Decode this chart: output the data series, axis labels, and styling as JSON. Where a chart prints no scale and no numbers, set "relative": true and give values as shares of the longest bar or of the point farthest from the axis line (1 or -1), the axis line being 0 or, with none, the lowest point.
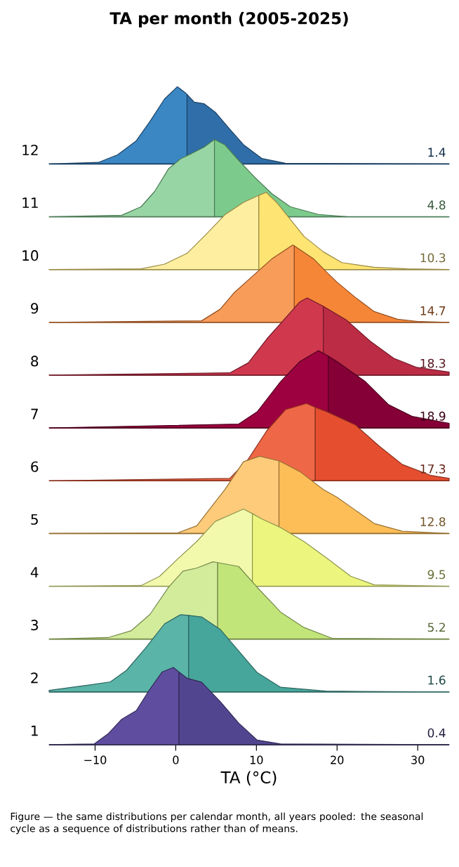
{
  "chart_data": [
    {
      "type": "area",
      "title": "TA per month (2005-2025)",
      "ylabel": "12",
      "relative": true,
      "xlim": [
        -15.7,
        33.9
      ],
      "tick_labels": false,
      "annotations": [
        "1.4"
      ],
      "series": [
        {
          "color": "#3a87c4",
          "x": [
            -15.7,
            -9.6,
            -7.2,
            -4.9,
            -3.2,
            -1.4,
            0.2,
            1.2,
            1.4
          ],
          "values": [
            0,
            0.02,
            0.12,
            0.3,
            0.55,
            0.84,
            1,
            0.92,
            0.9
          ]
        },
        {
          "color": "#2f6ea8",
          "x": [
            1.4,
            2.3,
            3.5,
            4.9,
            6.7,
            8.4,
            10.7,
            13.6,
            33.9
          ],
          "values": [
            0.9,
            0.8,
            0.78,
            0.67,
            0.45,
            0.25,
            0.07,
            0.01,
            0
          ]
        }
      ]
    },
    {
      "type": "area",
      "ylabel": "11",
      "relative": true,
      "xlim": [
        -15.7,
        33.9
      ],
      "tick_labels": false,
      "annotations": [
        "4.8"
      ],
      "series": [
        {
          "color": "#98d5a4",
          "x": [
            -15.7,
            -6.7,
            -4.3,
            -2.6,
            -0.9,
            0.6,
            2.0,
            3.5,
            4.8
          ],
          "values": [
            0,
            0.02,
            0.13,
            0.33,
            0.62,
            0.75,
            0.82,
            0.9,
            1
          ]
        },
        {
          "color": "#7ccb8c",
          "x": [
            4.8,
            6.1,
            7.8,
            9.9,
            11.9,
            14.2,
            17.7,
            21.4,
            33.9
          ],
          "values": [
            1,
            0.93,
            0.73,
            0.5,
            0.3,
            0.13,
            0.03,
            0,
            0
          ]
        }
      ]
    },
    {
      "type": "area",
      "ylabel": "10",
      "relative": true,
      "xlim": [
        -15.7,
        33.9
      ],
      "tick_labels": false,
      "annotations": [
        "10.3"
      ],
      "series": [
        {
          "color": "#feeea0",
          "x": [
            -15.7,
            -4.3,
            -1.4,
            1.4,
            3.8,
            6.1,
            8.4,
            10.3
          ],
          "values": [
            0,
            0.01,
            0.07,
            0.21,
            0.46,
            0.71,
            0.87,
            0.96
          ]
        },
        {
          "color": "#fee472",
          "x": [
            10.3,
            11.2,
            12.5,
            14.2,
            15.9,
            18.3,
            20.6,
            24.6,
            28.7,
            33.9
          ],
          "values": [
            0.96,
            1,
            0.87,
            0.65,
            0.43,
            0.23,
            0.09,
            0.03,
            0.01,
            0
          ]
        }
      ]
    },
    {
      "type": "area",
      "ylabel": "9",
      "relative": true,
      "xlim": [
        -15.7,
        33.9
      ],
      "tick_labels": false,
      "annotations": [
        "14.7"
      ],
      "series": [
        {
          "color": "#f89c5a",
          "x": [
            -15.7,
            3.2,
            5.5,
            7.2,
            9.0,
            11.9,
            14.5,
            14.7
          ],
          "values": [
            0,
            0.02,
            0.17,
            0.38,
            0.55,
            0.82,
            1,
            0.99
          ]
        },
        {
          "color": "#f68637",
          "x": [
            14.7,
            17.1,
            18.8,
            20.0,
            22.3,
            24.6,
            27.5,
            30.2,
            33.9
          ],
          "values": [
            0.99,
            0.82,
            0.64,
            0.52,
            0.32,
            0.14,
            0.04,
            0.01,
            0
          ]
        }
      ]
    },
    {
      "type": "area",
      "ylabel": "8",
      "relative": true,
      "xlim": [
        -15.7,
        33.9
      ],
      "tick_labels": false,
      "annotations": [
        "18.3"
      ],
      "series": [
        {
          "color": "#d0384e",
          "x": [
            -15.7,
            6.7,
            9.0,
            11.3,
            13.6,
            15.4,
            16.3,
            18.3
          ],
          "values": [
            0,
            0.03,
            0.16,
            0.47,
            0.74,
            0.95,
            1,
            0.89
          ]
        },
        {
          "color": "#bc2c45",
          "x": [
            18.3,
            21.2,
            24.1,
            27.0,
            29.9,
            33.9
          ],
          "values": [
            0.89,
            0.71,
            0.44,
            0.22,
            0.1,
            0.04
          ]
        }
      ]
    },
    {
      "type": "area",
      "ylabel": "7",
      "relative": true,
      "xlim": [
        -15.7,
        33.9
      ],
      "tick_labels": false,
      "annotations": [
        "18.9"
      ],
      "series": [
        {
          "color": "#9e013f",
          "x": [
            -15.7,
            7.8,
            10.1,
            13.0,
            15.4,
            17.7,
            18.9
          ],
          "values": [
            0,
            0.05,
            0.21,
            0.6,
            0.86,
            1,
            0.93
          ]
        },
        {
          "color": "#850036",
          "x": [
            18.9,
            20.0,
            23.5,
            26.4,
            29.3,
            33.9
          ],
          "values": [
            0.93,
            0.86,
            0.6,
            0.3,
            0.15,
            0.06
          ]
        }
      ]
    },
    {
      "type": "area",
      "ylabel": "6",
      "relative": true,
      "xlim": [
        -15.7,
        33.9
      ],
      "tick_labels": false,
      "annotations": [
        "17.3"
      ],
      "series": [
        {
          "color": "#ee6747",
          "x": [
            -15.7,
            6.7,
            9.0,
            11.3,
            13.6,
            16.2,
            17.3
          ],
          "values": [
            0,
            0.03,
            0.28,
            0.65,
            0.92,
            1,
            0.95
          ]
        },
        {
          "color": "#e54f2f",
          "x": [
            17.3,
            18.8,
            22.3,
            25.2,
            28.1,
            31.6,
            33.9
          ],
          "values": [
            0.95,
            0.89,
            0.72,
            0.45,
            0.21,
            0.07,
            0.03
          ]
        }
      ]
    },
    {
      "type": "area",
      "ylabel": "5",
      "relative": true,
      "xlim": [
        -15.7,
        33.9
      ],
      "tick_labels": false,
      "annotations": [
        "12.8"
      ],
      "series": [
        {
          "color": "#fecb7b",
          "x": [
            -15.7,
            0.3,
            2.6,
            4.3,
            6.1,
            8.4,
            10.4,
            12.8
          ],
          "values": [
            0,
            0.01,
            0.1,
            0.33,
            0.57,
            0.93,
            1,
            0.94
          ]
        },
        {
          "color": "#fdbe57",
          "x": [
            12.8,
            13.0,
            15.4,
            18.3,
            20.0,
            22.3,
            24.6,
            28.1,
            33.9
          ],
          "values": [
            0.94,
            0.93,
            0.8,
            0.57,
            0.47,
            0.3,
            0.13,
            0.03,
            0
          ]
        }
      ]
    },
    {
      "type": "area",
      "ylabel": "4",
      "relative": true,
      "xlim": [
        -15.7,
        33.9
      ],
      "tick_labels": false,
      "annotations": [
        "9.5"
      ],
      "series": [
        {
          "color": "#f2f9ac",
          "x": [
            -15.7,
            -4.3,
            -2.0,
            0.3,
            2.6,
            4.9,
            8.4,
            9.5
          ],
          "values": [
            0,
            0.01,
            0.13,
            0.36,
            0.58,
            0.84,
            1,
            0.94
          ]
        },
        {
          "color": "#ecf67f",
          "x": [
            9.5,
            10.7,
            13.0,
            15.9,
            18.8,
            21.7,
            24.6,
            33.9
          ],
          "values": [
            0.94,
            0.87,
            0.76,
            0.58,
            0.36,
            0.13,
            0.02,
            0
          ]
        }
      ]
    },
    {
      "type": "area",
      "ylabel": "3",
      "relative": true,
      "xlim": [
        -15.7,
        33.9
      ],
      "tick_labels": false,
      "annotations": [
        "5.2"
      ],
      "series": [
        {
          "color": "#d3ec9c",
          "x": [
            -15.7,
            -8.4,
            -5.5,
            -3.2,
            -0.9,
            0.9,
            2.6,
            4.6,
            5.2
          ],
          "values": [
            0,
            0.02,
            0.11,
            0.32,
            0.67,
            0.88,
            0.92,
            1,
            0.99
          ]
        },
        {
          "color": "#c2e57a",
          "x": [
            5.2,
            7.8,
            10.1,
            13.0,
            15.9,
            19.4,
            33.9
          ],
          "values": [
            0.99,
            0.94,
            0.67,
            0.35,
            0.15,
            0.01,
            0
          ]
        }
      ]
    },
    {
      "type": "area",
      "ylabel": "2",
      "relative": true,
      "xlim": [
        -15.7,
        33.9
      ],
      "tick_labels": false,
      "annotations": [
        "1.6"
      ],
      "series": [
        {
          "color": "#5ab4a8",
          "x": [
            -15.7,
            -10.7,
            -8.1,
            -6.1,
            -3.8,
            -1.4,
            0.6,
            1.6
          ],
          "values": [
            0.02,
            0.09,
            0.13,
            0.28,
            0.56,
            0.88,
            1,
            0.99
          ]
        },
        {
          "color": "#47a69c",
          "x": [
            1.6,
            3.2,
            5.5,
            7.8,
            10.1,
            13.0,
            18.6,
            33.9
          ],
          "values": [
            0.99,
            0.97,
            0.81,
            0.53,
            0.25,
            0.06,
            0.01,
            0
          ]
        }
      ]
    },
    {
      "type": "area",
      "ylabel": "1",
      "relative": true,
      "xlim": [
        -15.7,
        33.9
      ],
      "xticks": [
        {
          "value": -10,
          "label": "−10"
        },
        0,
        10,
        20,
        30
      ],
      "tick_labels": "x",
      "xlabel": "TA (°C)",
      "annotations": [
        "0.4",
        "Figure — the same distributions per calendar month, all years pooled: the seasonal cycle as a sequence of distributions rather than of means."
      ],
      "series": [
        {
          "color": "#5f4e9f",
          "x": [
            -15.7,
            -10.1,
            -8.4,
            -6.7,
            -4.9,
            -3.2,
            -1.7,
            -0.3,
            0.4
          ],
          "values": [
            0,
            0.01,
            0.14,
            0.33,
            0.44,
            0.72,
            0.94,
            1,
            0.94
          ]
        },
        {
          "color": "#524590",
          "x": [
            0.4,
            1.4,
            3.2,
            5.5,
            7.8,
            10.1,
            13.0,
            33.9
          ],
          "values": [
            0.94,
            0.86,
            0.81,
            0.56,
            0.28,
            0.06,
            0.01,
            0
          ]
        }
      ]
    }
  ]
}
